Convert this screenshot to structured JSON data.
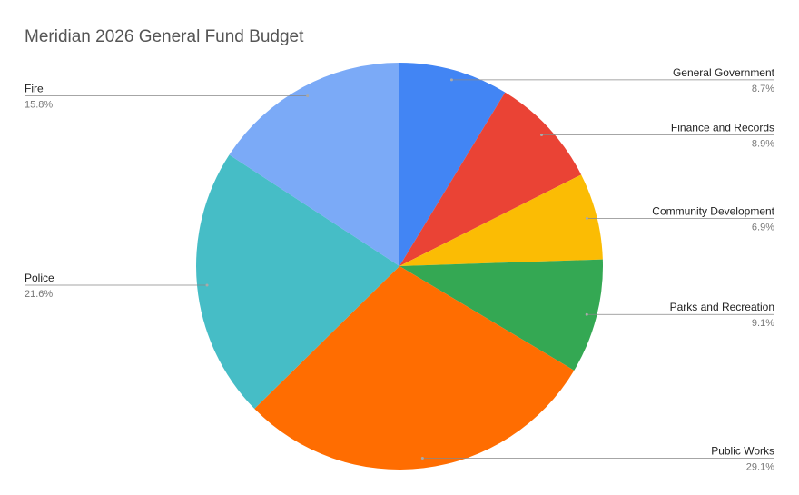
{
  "chart_data": {
    "type": "pie",
    "title": "Meridian 2026 General Fund Budget",
    "categories": [
      "General Government",
      "Finance and Records",
      "Community Development",
      "Parks and Recreation",
      "Public Works",
      "Police",
      "Fire"
    ],
    "values": [
      8.7,
      8.9,
      6.9,
      9.1,
      29.1,
      21.6,
      15.8
    ],
    "value_labels": [
      "8.7%",
      "8.9%",
      "6.9%",
      "9.1%",
      "29.1%",
      "21.6%",
      "15.8%"
    ],
    "colors": [
      "#4285f4",
      "#ea4335",
      "#fbbc04",
      "#34a853",
      "#ff6d01",
      "#46bdc6",
      "#7baaf7"
    ]
  }
}
